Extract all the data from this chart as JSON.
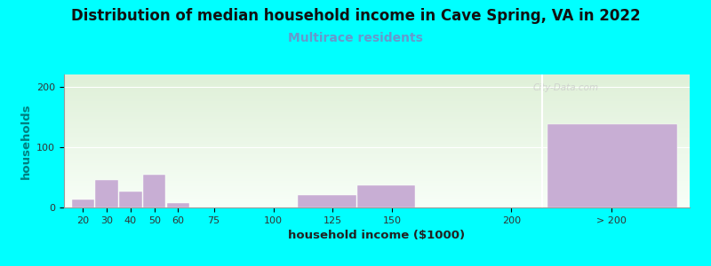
{
  "title": "Distribution of median household income in Cave Spring, VA in 2022",
  "subtitle": "Multirace residents",
  "xlabel": "household income ($1000)",
  "ylabel": "households",
  "background_color": "#00FFFF",
  "plot_bg_gradient_top": "#dff0d8",
  "plot_bg_gradient_bottom": "#f8fff8",
  "bar_color": "#c8aed4",
  "bar_edge_color": "#ffffff",
  "title_fontsize": 12,
  "subtitle_fontsize": 10,
  "subtitle_color": "#6699cc",
  "ylabel_color": "#008080",
  "tick_labels": [
    "20",
    "30",
    "40",
    "50",
    "60",
    "75",
    "100",
    "125",
    "150",
    "200",
    "> 200"
  ],
  "bar_left_edges": [
    15,
    25,
    35,
    45,
    55,
    65,
    90,
    110,
    135,
    175,
    215
  ],
  "bar_widths": [
    10,
    10,
    10,
    10,
    10,
    12,
    12,
    25,
    25,
    25,
    55
  ],
  "bar_heights": [
    13,
    45,
    27,
    55,
    8,
    0,
    0,
    20,
    37,
    0,
    138
  ],
  "tick_positions": [
    20,
    30,
    40,
    50,
    60,
    75,
    100,
    125,
    150,
    200,
    242
  ],
  "ylim": [
    0,
    220
  ],
  "yticks": [
    0,
    100,
    200
  ],
  "xlim": [
    12,
    275
  ],
  "watermark": "City-Data.com"
}
